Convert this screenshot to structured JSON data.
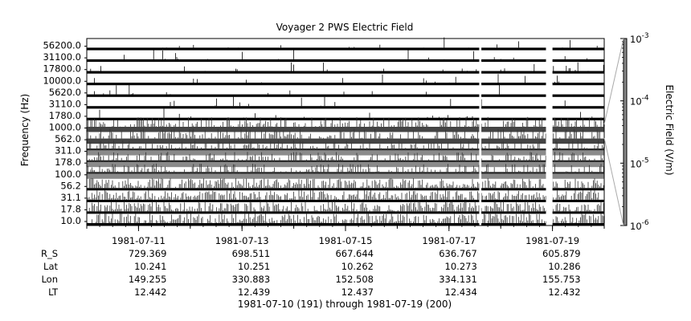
{
  "chart_data": {
    "type": "spectrogram",
    "title": "Voyager 2 PWS Electric Field",
    "ylabel": "Frequency (Hz)",
    "frequency_channels_hz": [
      "56200.0",
      "31100.0",
      "17800.0",
      "10000.0",
      "5620.0",
      "3110.0",
      "1780.0",
      "1000.0",
      "562.0",
      "311.0",
      "178.0",
      "100.0",
      "56.2",
      "31.1",
      "17.8",
      "10.0"
    ],
    "colorbar": {
      "label": "Electric Field (V/m)",
      "scale": "log",
      "range": [
        1e-06,
        0.001
      ],
      "ticks": [
        {
          "base": "10",
          "exp": "-3",
          "value": 0.001
        },
        {
          "base": "10",
          "exp": "-4",
          "value": 0.0001
        },
        {
          "base": "10",
          "exp": "-5",
          "value": 1e-05
        },
        {
          "base": "10",
          "exp": "-6",
          "value": 1e-06
        }
      ]
    },
    "x_range": [
      "1981-07-10",
      "1981-07-20"
    ],
    "x_tick_dates": [
      "1981-07-11",
      "1981-07-13",
      "1981-07-15",
      "1981-07-17",
      "1981-07-19"
    ],
    "data_gaps": [
      [
        "1981-07-17T14:00",
        "1981-07-17T15:00"
      ],
      [
        "1981-07-18T21:00",
        "1981-07-19T00:00"
      ]
    ],
    "ephemeris": {
      "rows": [
        {
          "label": "R_S",
          "values": [
            "729.369",
            "698.511",
            "667.644",
            "636.767",
            "605.879"
          ]
        },
        {
          "label": "Lat",
          "values": [
            "10.241",
            "10.251",
            "10.262",
            "10.273",
            "10.286"
          ]
        },
        {
          "label": "Lon",
          "values": [
            "149.255",
            "330.883",
            "152.508",
            "334.131",
            "155.753"
          ]
        },
        {
          "label": "LT",
          "values": [
            "12.442",
            "12.439",
            "12.437",
            "12.434",
            "12.432"
          ]
        }
      ]
    },
    "footer": "1981-07-10 (191) through 1981-07-19 (200)"
  }
}
